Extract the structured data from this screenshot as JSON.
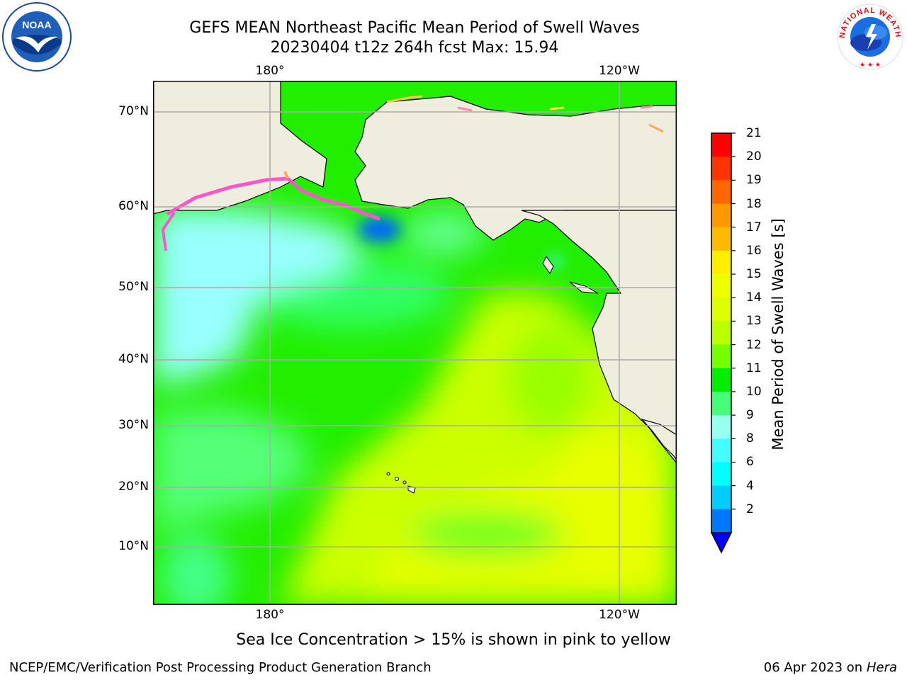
{
  "title_line1": "GEFS MEAN Northeast Pacific Mean Period of Swell Waves",
  "title_line2": "20230404 t12z 264h fcst   Max: 15.94",
  "logos": {
    "left": "NOAA",
    "right": "NATIONAL WEATHER SERVICE"
  },
  "lat_labels": [
    "70°N",
    "60°N",
    "50°N",
    "40°N",
    "30°N",
    "20°N",
    "10°N"
  ],
  "lon_labels": [
    "180°",
    "120°W"
  ],
  "colorbar": {
    "label": "Mean Period of Swell Waves [s]",
    "ticks": [
      "21",
      "20",
      "19",
      "18",
      "17",
      "16",
      "15",
      "14",
      "13",
      "12",
      "11",
      "10",
      "9",
      "8",
      "6",
      "4",
      "2"
    ],
    "colors": [
      "#ff0000",
      "#ff3300",
      "#ff6600",
      "#ff9900",
      "#ffbb00",
      "#ffee00",
      "#eeff00",
      "#ddff00",
      "#bbff00",
      "#77ff00",
      "#00ee00",
      "#44ff77",
      "#99ffee",
      "#44ffff",
      "#00ffff",
      "#00ccff",
      "#0077ff"
    ],
    "extend_color": "#0000ff"
  },
  "note": "Sea Ice Concentration > 15% is shown in pink to yellow",
  "footer_left": "NCEP/EMC/Verification Post Processing Product Generation Branch",
  "footer_right_text": "06 Apr 2023 on ",
  "footer_right_host": "Hera"
}
